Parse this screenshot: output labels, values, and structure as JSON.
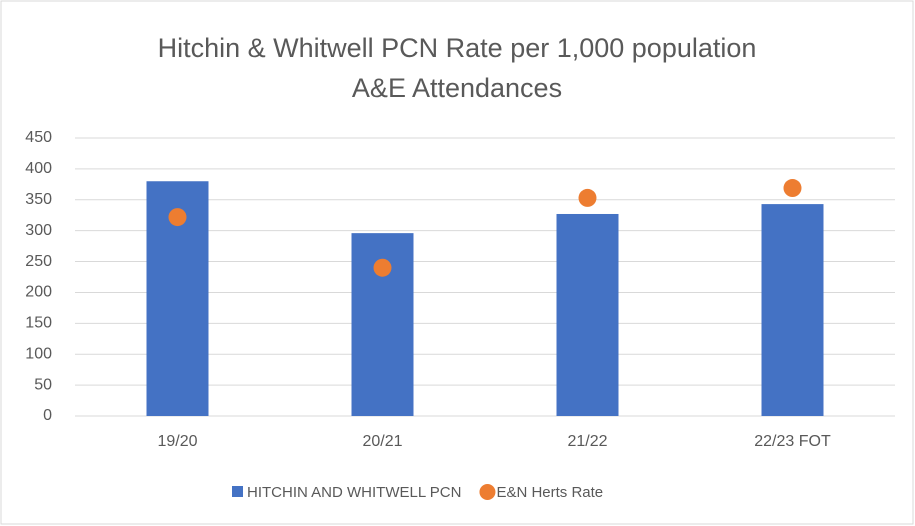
{
  "chart_data": {
    "type": "bar",
    "title": [
      "Hitchin & Whitwell PCN Rate per 1,000 population",
      "A&E Attendances"
    ],
    "categories": [
      "19/20",
      "20/21",
      "21/22",
      "22/23 FOT"
    ],
    "series": [
      {
        "name": "HITCHIN AND WHITWELL PCN",
        "color": "#4472c4",
        "type": "bar",
        "values": [
          380,
          296,
          327,
          343
        ]
      },
      {
        "name": "E&N Herts Rate",
        "color": "#ed7d31",
        "type": "dot",
        "values": [
          322,
          240,
          353,
          369
        ]
      }
    ],
    "ylim": [
      0,
      450
    ],
    "yticks": [
      0,
      50,
      100,
      150,
      200,
      250,
      300,
      350,
      400,
      450
    ],
    "grid": true
  }
}
